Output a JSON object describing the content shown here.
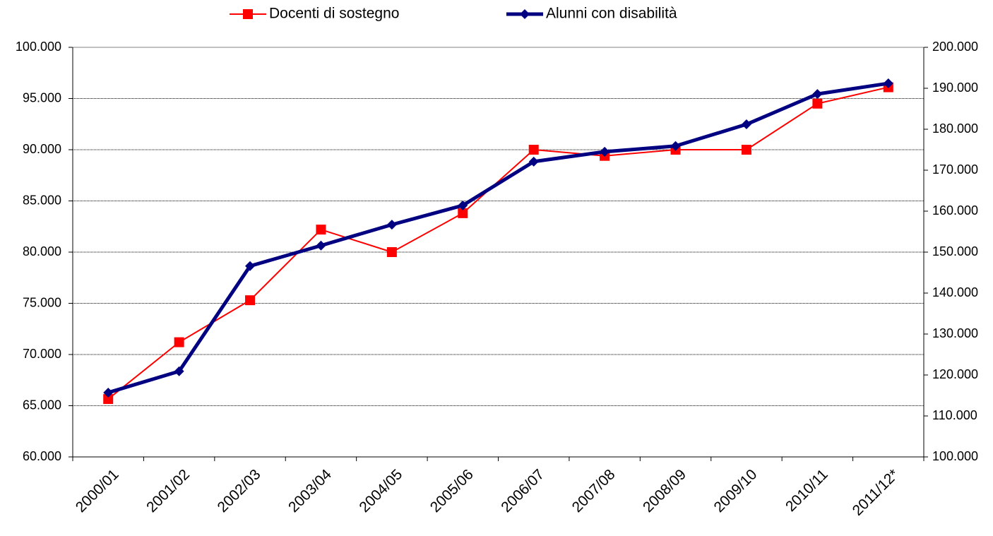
{
  "chart_data": {
    "type": "line",
    "categories": [
      "2000/01",
      "2001/02",
      "2002/03",
      "2003/04",
      "2004/05",
      "2005/06",
      "2006/07",
      "2007/08",
      "2008/09",
      "2009/10",
      "2010/11",
      "2011/12*"
    ],
    "series": [
      {
        "name": "Docenti di sostegno",
        "color": "#ff0000",
        "marker": "square",
        "axis": "y",
        "values": [
          65650,
          71200,
          75300,
          82200,
          80000,
          83800,
          90000,
          89400,
          90000,
          90000,
          94500,
          96100
        ]
      },
      {
        "name": "Alunni con disabilità",
        "color": "#000080",
        "marker": "diamond",
        "axis": "y2",
        "values": [
          115700,
          120900,
          146600,
          151600,
          156700,
          161400,
          172100,
          174500,
          175900,
          181200,
          188600,
          191200
        ]
      }
    ],
    "ylim": [
      60000,
      100000
    ],
    "yticks": [
      {
        "value": 60000,
        "label": "60.000"
      },
      {
        "value": 65000,
        "label": "65.000"
      },
      {
        "value": 70000,
        "label": "70.000"
      },
      {
        "value": 75000,
        "label": "75.000"
      },
      {
        "value": 80000,
        "label": "80.000"
      },
      {
        "value": 85000,
        "label": "85.000"
      },
      {
        "value": 90000,
        "label": "90.000"
      },
      {
        "value": 95000,
        "label": "95.000"
      },
      {
        "value": 100000,
        "label": "100.000"
      }
    ],
    "y2lim": [
      100000,
      200000
    ],
    "y2ticks": [
      {
        "value": 100000,
        "label": "100.000"
      },
      {
        "value": 110000,
        "label": "110.000"
      },
      {
        "value": 120000,
        "label": "120.000"
      },
      {
        "value": 130000,
        "label": "130.000"
      },
      {
        "value": 140000,
        "label": "140.000"
      },
      {
        "value": 150000,
        "label": "150.000"
      },
      {
        "value": 160000,
        "label": "160.000"
      },
      {
        "value": 170000,
        "label": "170.000"
      },
      {
        "value": 180000,
        "label": "180.000"
      },
      {
        "value": 190000,
        "label": "190.000"
      },
      {
        "value": 200000,
        "label": "200.000"
      }
    ],
    "grid": true,
    "legend": "top"
  }
}
